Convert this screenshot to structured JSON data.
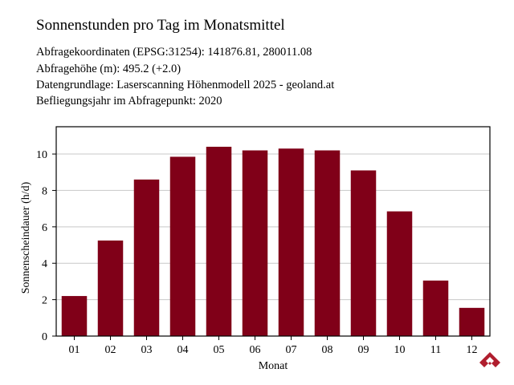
{
  "header": {
    "title": "Sonnenstunden pro Tag im Monatsmittel",
    "info_lines": [
      "Abfragekoordinaten (EPSG:31254): 141876.81, 280011.08",
      "Abfragehöhe (m): 495.2 (+2.0)",
      "Datengrundlage: Laserscanning Höhenmodell 2025 - geoland.at",
      "Befliegungsjahr im Abfragepunkt: 2020"
    ]
  },
  "colors": {
    "bar": "#800018",
    "grid": "#c8c8c8",
    "axis": "#000000",
    "logo": "#b01e2e"
  },
  "logo": {
    "icon": "diamond-logo-icon"
  },
  "chart_data": {
    "type": "bar",
    "categories": [
      "01",
      "02",
      "03",
      "04",
      "05",
      "06",
      "07",
      "08",
      "09",
      "10",
      "11",
      "12"
    ],
    "values": [
      2.2,
      5.25,
      8.6,
      9.85,
      10.4,
      10.2,
      10.3,
      10.2,
      9.1,
      6.85,
      3.05,
      1.55
    ],
    "title": "",
    "xlabel": "Monat",
    "ylabel": "Sonnenscheindauer (h/d)",
    "ylim": [
      0,
      11.5
    ],
    "yticks": [
      0,
      2,
      4,
      6,
      8,
      10
    ],
    "grid": true,
    "legend": "none"
  }
}
